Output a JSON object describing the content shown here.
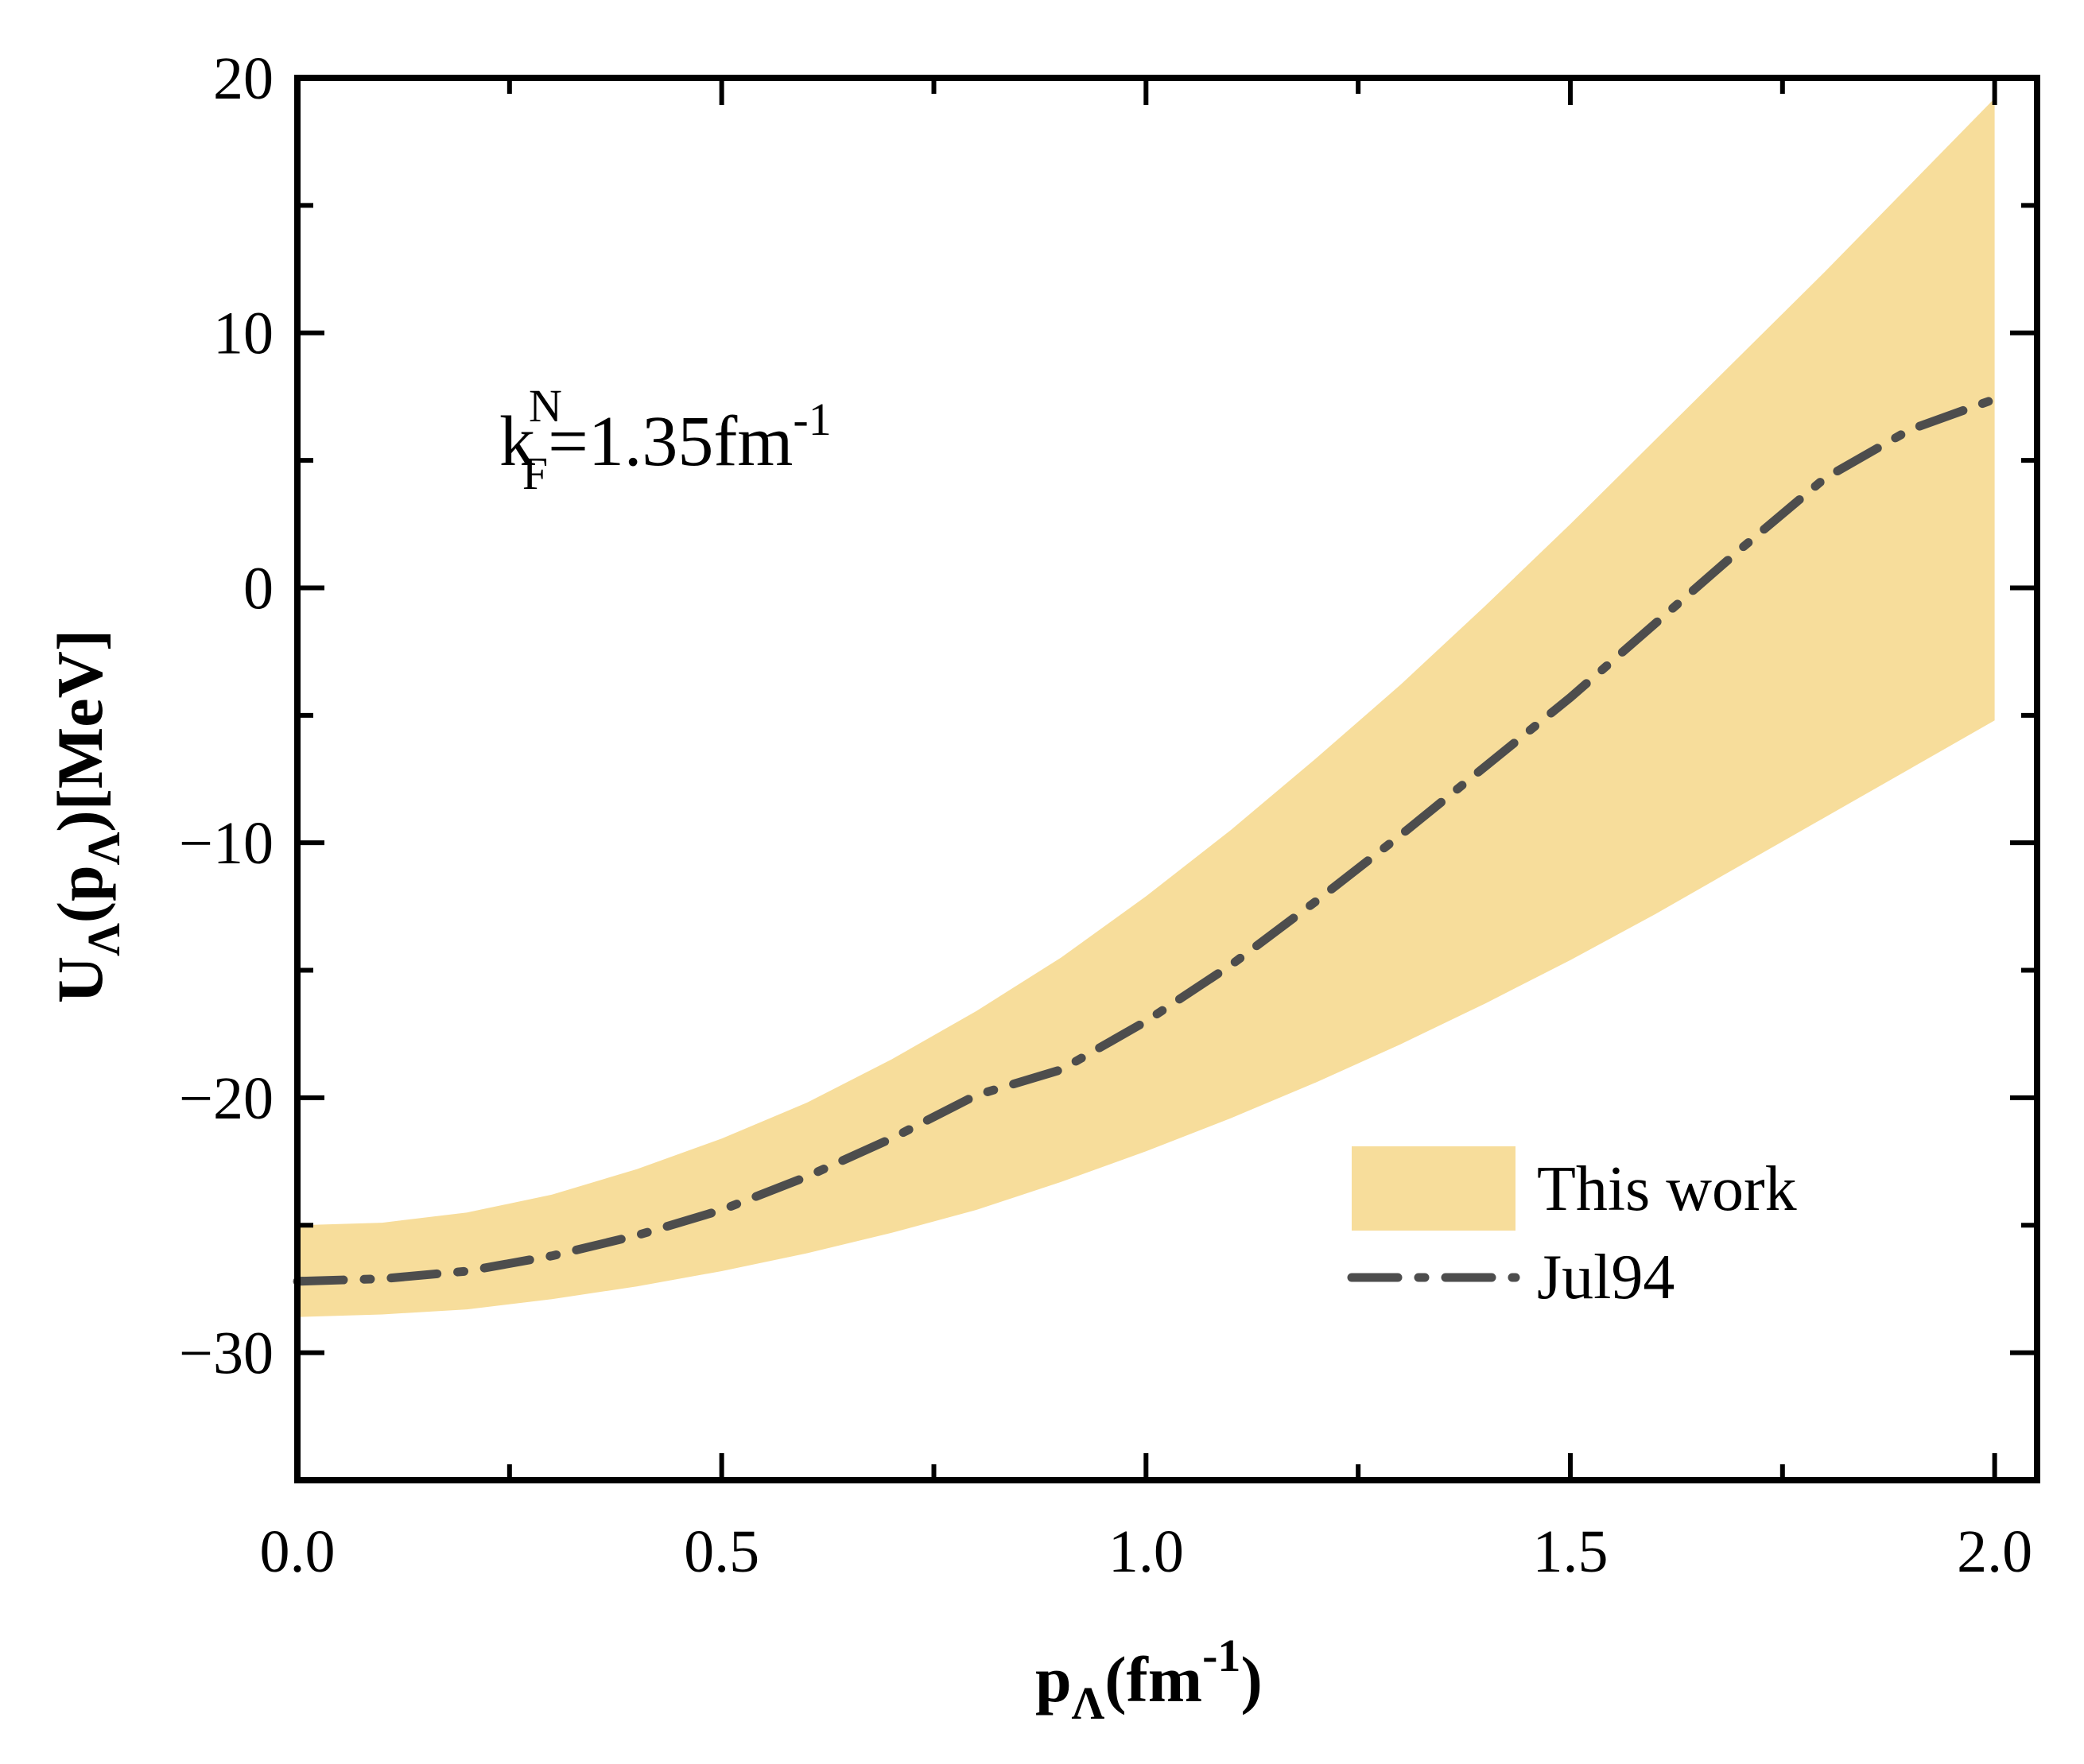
{
  "chart_data": {
    "type": "area",
    "title": "",
    "xlabel": {
      "main": "p",
      "sub": "Λ",
      "rest": "(fm",
      "sup": "-1",
      "close": ")"
    },
    "ylabel": {
      "main": "U",
      "sub1": "Λ",
      "mid": "(p",
      "sub2": "Λ",
      "rest": ")[MeV]"
    },
    "xlim": [
      0.0,
      2.05
    ],
    "ylim": [
      -35,
      20
    ],
    "x_ticks": [
      0.0,
      0.5,
      1.0,
      1.5,
      2.0
    ],
    "x_tick_labels": [
      "0.0",
      "0.5",
      "1.0",
      "1.5",
      "2.0"
    ],
    "x_minor_ticks": [
      0.25,
      0.75,
      1.25,
      1.75
    ],
    "y_ticks": [
      -30,
      -20,
      -10,
      0,
      10,
      20
    ],
    "y_tick_labels": [
      "−30",
      "−20",
      "−10",
      "0",
      "10",
      "20"
    ],
    "y_minor_ticks": [
      -25,
      -15,
      -5,
      5,
      15
    ],
    "annotation": {
      "k": "k",
      "sub": "F",
      "sup": "N",
      "rest": "=1.35fm",
      "rest_sup": "-1"
    },
    "band": {
      "name": "This work",
      "color": "#f7dd9b",
      "x": [
        0.0,
        0.1,
        0.2,
        0.3,
        0.4,
        0.5,
        0.6,
        0.7,
        0.8,
        0.9,
        1.0,
        1.1,
        1.2,
        1.3,
        1.4,
        1.5,
        1.6,
        1.7,
        1.8,
        1.9,
        2.0
      ],
      "upper": [
        -25.0,
        -24.9,
        -24.5,
        -23.8,
        -22.8,
        -21.6,
        -20.2,
        -18.5,
        -16.6,
        -14.5,
        -12.1,
        -9.5,
        -6.7,
        -3.8,
        -0.7,
        2.5,
        5.8,
        9.1,
        12.4,
        15.8,
        19.2
      ],
      "lower": [
        -28.6,
        -28.5,
        -28.3,
        -27.9,
        -27.4,
        -26.8,
        -26.1,
        -25.3,
        -24.4,
        -23.3,
        -22.1,
        -20.8,
        -19.4,
        -17.9,
        -16.3,
        -14.6,
        -12.8,
        -10.9,
        -9.0,
        -7.1,
        -5.2
      ]
    },
    "series": [
      {
        "name": "Jul94",
        "style": "dash-dot",
        "color": "#4d4d4d",
        "x": [
          0.0,
          0.1,
          0.2,
          0.3,
          0.4,
          0.5,
          0.6,
          0.7,
          0.8,
          0.9,
          1.0,
          1.1,
          1.2,
          1.3,
          1.4,
          1.5,
          1.6,
          1.7,
          1.8,
          1.9,
          2.0
        ],
        "values": [
          -27.2,
          -27.1,
          -26.8,
          -26.2,
          -25.4,
          -24.4,
          -23.1,
          -21.6,
          -19.9,
          -18.9,
          -17.0,
          -14.8,
          -12.3,
          -9.7,
          -7.0,
          -4.3,
          -1.4,
          1.5,
          4.3,
          6.2,
          7.4
        ]
      }
    ],
    "legend": {
      "position": "bottom-right",
      "entries": [
        "This work",
        "Jul94"
      ]
    },
    "grid": false
  }
}
